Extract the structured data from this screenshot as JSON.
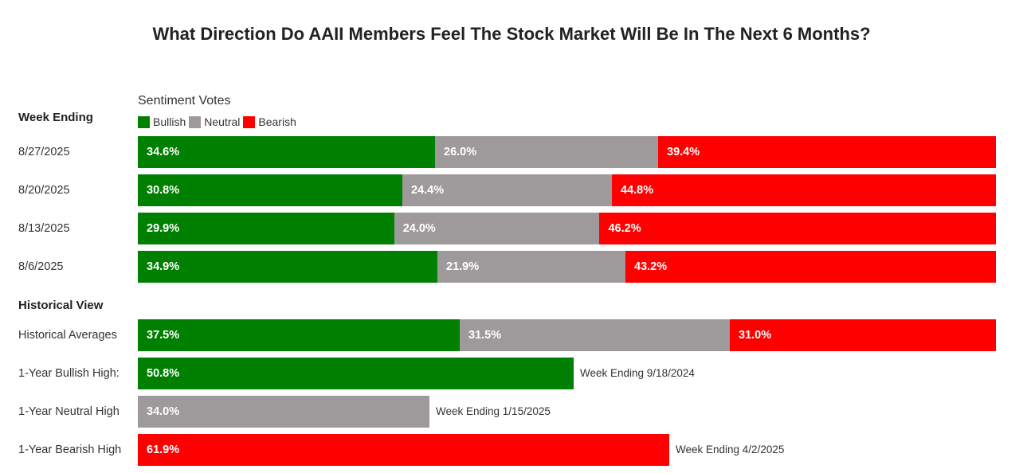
{
  "title": "What Direction Do AAII Members Feel The Stock Market Will Be In The Next 6 Months?",
  "legend": {
    "title": "Sentiment Votes",
    "items": [
      {
        "label": "Bullish",
        "color": "#008000"
      },
      {
        "label": "Neutral",
        "color": "#9e9a9b"
      },
      {
        "label": "Bearish",
        "color": "#ff0000"
      }
    ]
  },
  "weekly_header": "Week Ending",
  "historical_header": "Historical View",
  "chart_data": [
    {
      "type": "bar",
      "orientation": "horizontal",
      "stacked": true,
      "title": "Week Ending",
      "categories": [
        "8/27/2025",
        "8/20/2025",
        "8/13/2025",
        "8/6/2025"
      ],
      "series": [
        {
          "name": "Bullish",
          "color": "#008000",
          "values": [
            34.6,
            30.8,
            29.9,
            34.9
          ],
          "labels": [
            "34.6%",
            "30.8%",
            "29.9%",
            "34.9%"
          ]
        },
        {
          "name": "Neutral",
          "color": "#9e9a9b",
          "values": [
            26.0,
            24.4,
            24.0,
            21.9
          ],
          "labels": [
            "26.0%",
            "24.4%",
            "24.0%",
            "21.9%"
          ]
        },
        {
          "name": "Bearish",
          "color": "#ff0000",
          "values": [
            39.4,
            44.8,
            46.2,
            43.2
          ],
          "labels": [
            "39.4%",
            "44.8%",
            "46.2%",
            "43.2%"
          ]
        }
      ],
      "xlim": [
        0,
        100
      ]
    },
    {
      "type": "bar",
      "orientation": "horizontal",
      "stacked": true,
      "title": "Historical View",
      "rows": [
        {
          "label": "Historical Averages",
          "segments": [
            {
              "series": "Bullish",
              "value": 37.5,
              "text": "37.5%",
              "color": "#008000"
            },
            {
              "series": "Neutral",
              "value": 31.5,
              "text": "31.5%",
              "color": "#9e9a9b"
            },
            {
              "series": "Bearish",
              "value": 31.0,
              "text": "31.0%",
              "color": "#ff0000"
            }
          ],
          "note": ""
        },
        {
          "label": "1-Year Bullish High:",
          "segments": [
            {
              "series": "Bullish",
              "value": 50.8,
              "text": "50.8%",
              "color": "#008000"
            }
          ],
          "note": "Week Ending 9/18/2024"
        },
        {
          "label": "1-Year Neutral High",
          "segments": [
            {
              "series": "Neutral",
              "value": 34.0,
              "text": "34.0%",
              "color": "#9e9a9b"
            }
          ],
          "note": "Week Ending 1/15/2025"
        },
        {
          "label": "1-Year Bearish High",
          "segments": [
            {
              "series": "Bearish",
              "value": 61.9,
              "text": "61.9%",
              "color": "#ff0000"
            }
          ],
          "note": "Week Ending 4/2/2025"
        }
      ],
      "xlim": [
        0,
        100
      ]
    }
  ]
}
